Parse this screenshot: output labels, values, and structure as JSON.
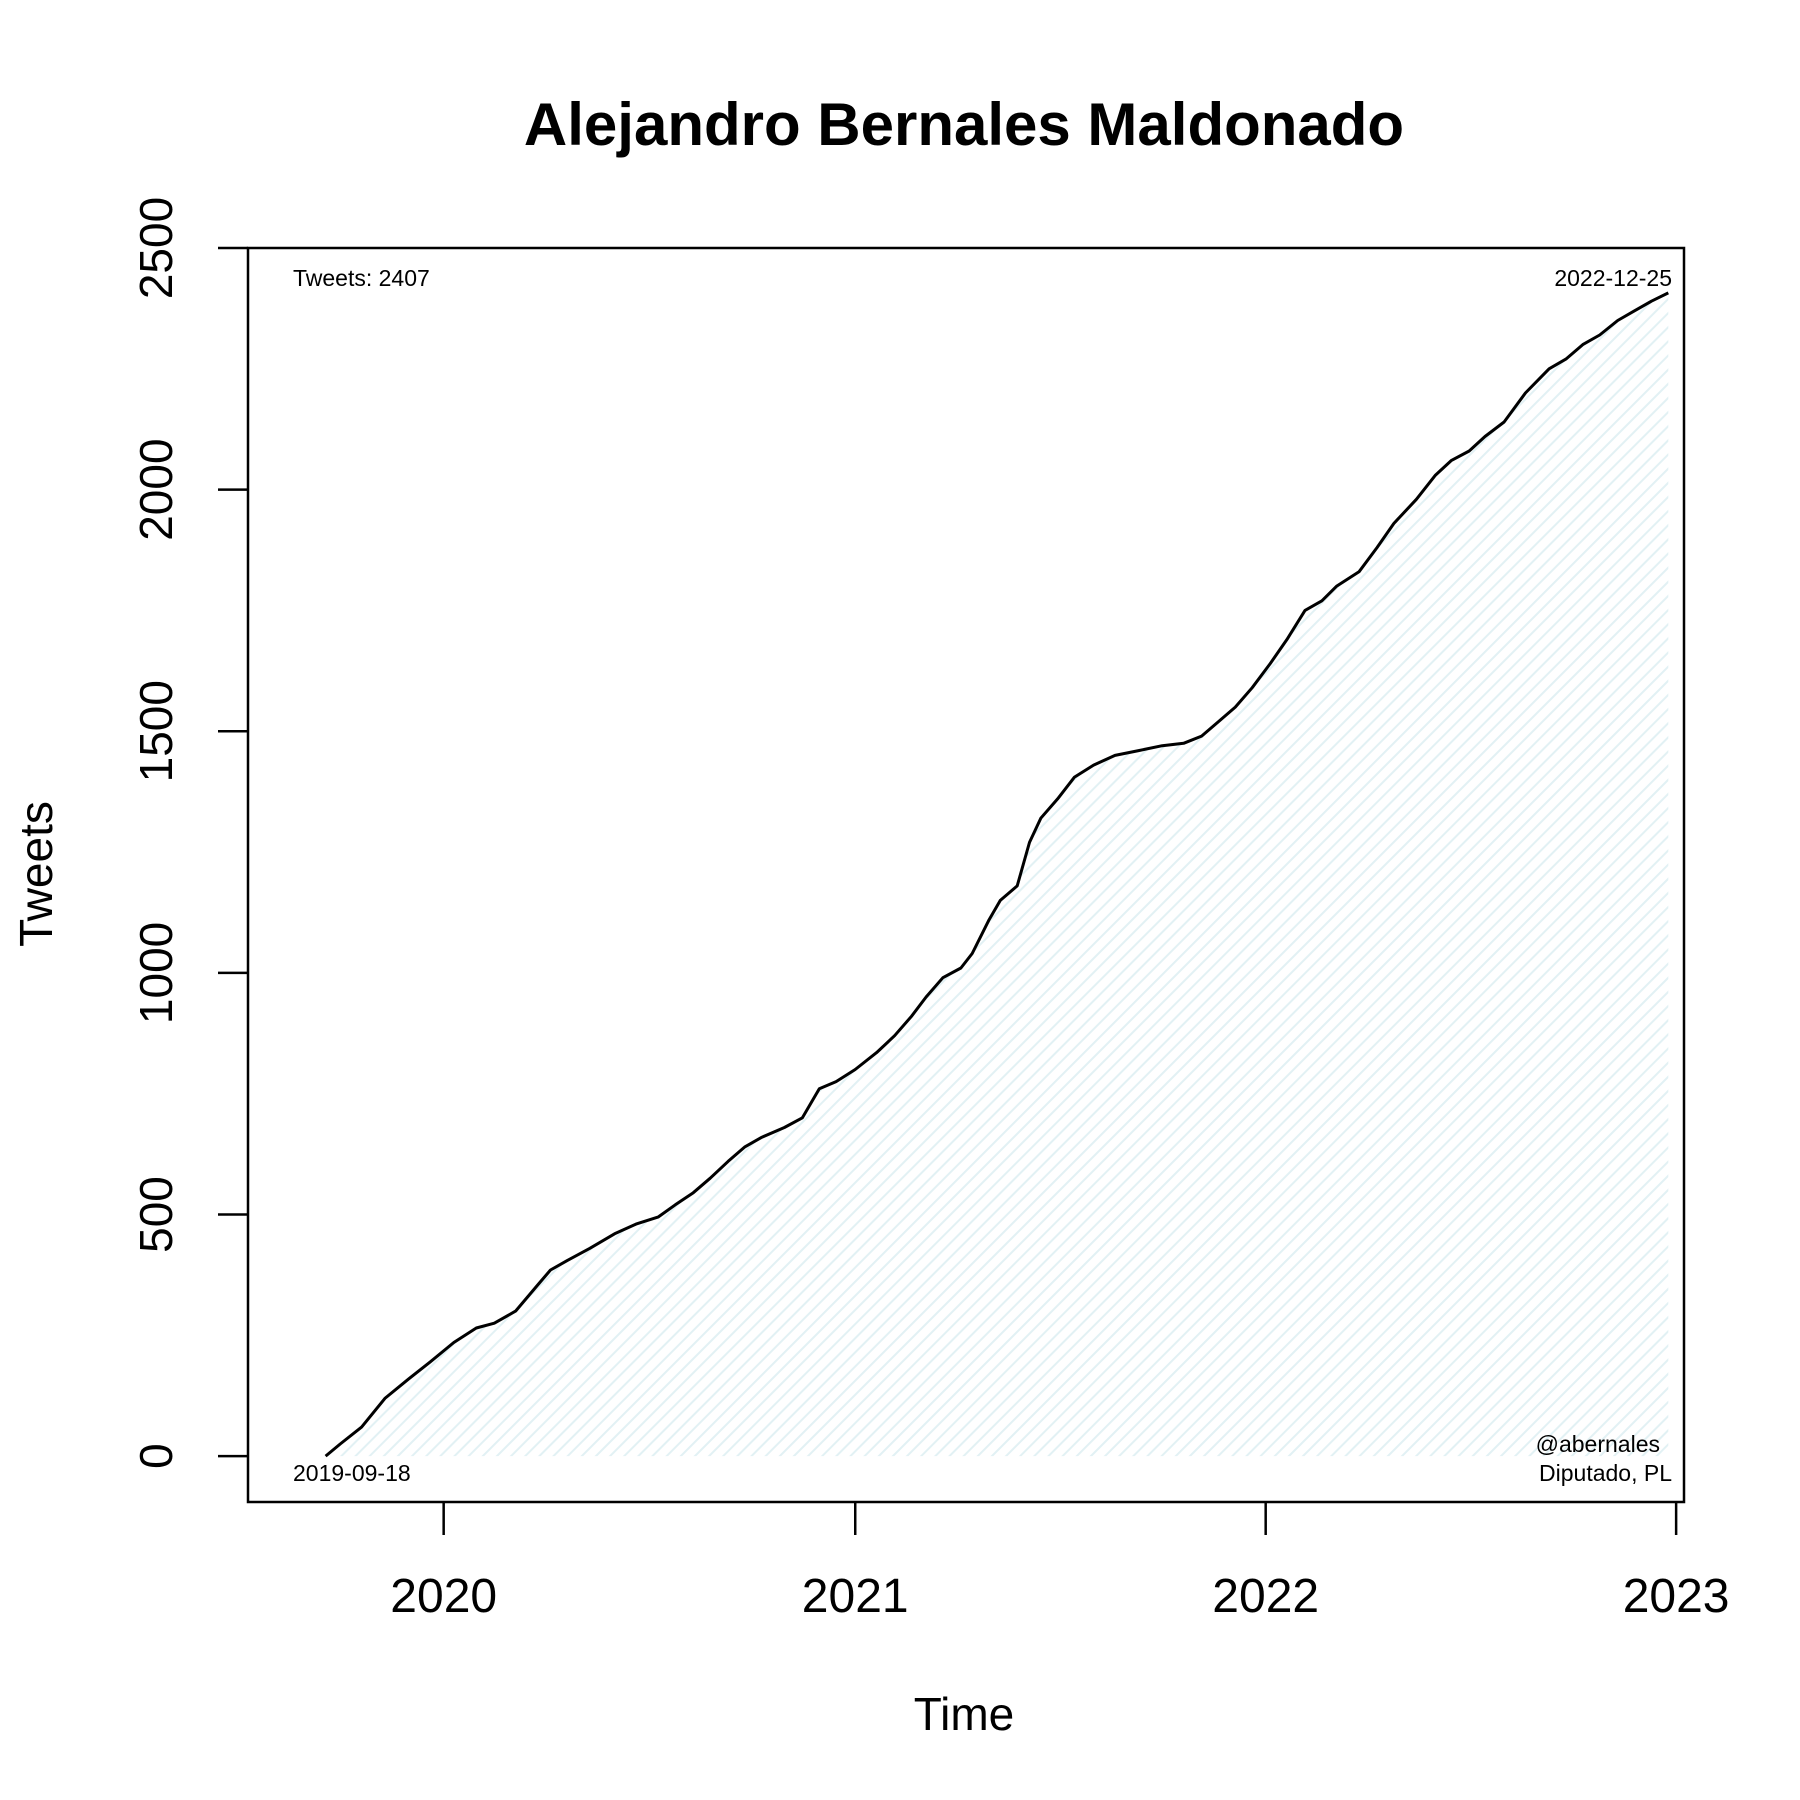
{
  "chart_data": {
    "type": "area",
    "title": "Alejandro Bernales Maldonado",
    "xlabel": "Time",
    "ylabel": "Tweets",
    "x_ticks": [
      "2020",
      "2021",
      "2022",
      "2023"
    ],
    "y_ticks": [
      0,
      500,
      1000,
      1500,
      2000,
      2500
    ],
    "ylim": [
      -95,
      2500
    ],
    "xlim": [
      "2019-07-11",
      "2023-01-08"
    ],
    "fill_color": "#e6f3f5",
    "line_color": "#000000",
    "series": [
      {
        "x": [
          "2019-09-18",
          "2019-10-01",
          "2019-10-20",
          "2019-11-10",
          "2019-12-01",
          "2019-12-20",
          "2020-01-10",
          "2020-01-30",
          "2020-02-15",
          "2020-03-05",
          "2020-03-25",
          "2020-04-05",
          "2020-04-20",
          "2020-05-10",
          "2020-06-01",
          "2020-06-20",
          "2020-07-10",
          "2020-07-25",
          "2020-08-10",
          "2020-08-25",
          "2020-09-10",
          "2020-09-25",
          "2020-10-10",
          "2020-10-30",
          "2020-11-15",
          "2020-11-30",
          "2020-12-15",
          "2021-01-01",
          "2021-01-20",
          "2021-02-05",
          "2021-02-20",
          "2021-03-05",
          "2021-03-20",
          "2021-04-05",
          "2021-04-15",
          "2021-04-30",
          "2021-05-10",
          "2021-05-25",
          "2021-06-05",
          "2021-06-15",
          "2021-06-30",
          "2021-07-15",
          "2021-08-01",
          "2021-08-20",
          "2021-09-10",
          "2021-10-01",
          "2021-10-20",
          "2021-11-05",
          "2021-11-20",
          "2021-12-05",
          "2021-12-20",
          "2022-01-05",
          "2022-01-20",
          "2022-02-05",
          "2022-02-20",
          "2022-03-05",
          "2022-03-25",
          "2022-04-10",
          "2022-04-25",
          "2022-05-15",
          "2022-06-01",
          "2022-06-15",
          "2022-07-01",
          "2022-07-15",
          "2022-08-01",
          "2022-08-20",
          "2022-09-10",
          "2022-09-25",
          "2022-10-10",
          "2022-10-25",
          "2022-11-10",
          "2022-11-25",
          "2022-12-10",
          "2022-12-25"
        ],
        "y": [
          0,
          25,
          60,
          120,
          160,
          195,
          235,
          265,
          275,
          300,
          355,
          385,
          405,
          430,
          460,
          480,
          495,
          520,
          545,
          575,
          610,
          640,
          660,
          680,
          700,
          760,
          775,
          800,
          835,
          870,
          910,
          950,
          990,
          1010,
          1040,
          1110,
          1150,
          1180,
          1270,
          1320,
          1360,
          1405,
          1430,
          1450,
          1460,
          1470,
          1475,
          1490,
          1520,
          1550,
          1590,
          1640,
          1690,
          1750,
          1770,
          1800,
          1830,
          1880,
          1930,
          1980,
          2030,
          2060,
          2080,
          2110,
          2140,
          2200,
          2250,
          2270,
          2300,
          2320,
          2350,
          2370,
          2390,
          2407
        ]
      }
    ],
    "annotations": {
      "top_left": "Tweets: 2407",
      "top_right": "2022-12-25",
      "bottom_left": "2019-09-18",
      "bottom_right_1": "@abernales",
      "bottom_right_2": "Diputado, PL"
    }
  }
}
